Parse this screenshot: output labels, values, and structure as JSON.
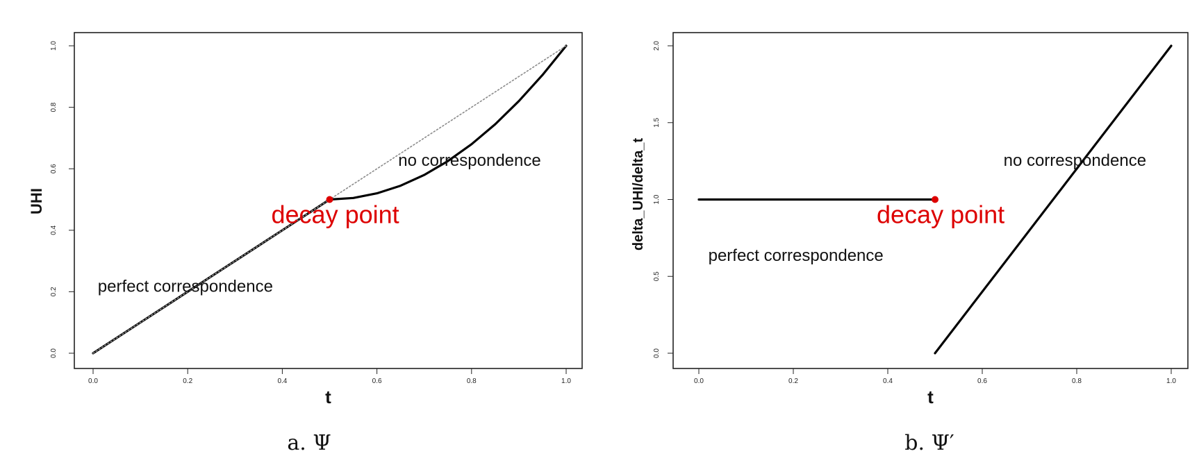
{
  "figure": {
    "captions": [
      "a. Ψ",
      "b. Ψ′"
    ]
  },
  "colors": {
    "curve": "#000000",
    "marker": "#dd0000",
    "diagonal": "#8a8a8a",
    "frame": "#222222"
  },
  "chart_data": [
    {
      "type": "line",
      "title": "",
      "caption": "a. Ψ",
      "xlabel": "t",
      "ylabel": "UHI",
      "xlim": [
        0,
        1
      ],
      "ylim": [
        0,
        1
      ],
      "xticks": [
        "0.0",
        "0.2",
        "0.4",
        "0.6",
        "0.8",
        "1.0"
      ],
      "yticks": [
        "0.0",
        "0.2",
        "0.4",
        "0.6",
        "0.8",
        "1.0"
      ],
      "grid": false,
      "series": [
        {
          "style": "solid",
          "x": [
            0.0,
            0.1,
            0.2,
            0.3,
            0.4,
            0.5
          ],
          "y": [
            0.0,
            0.1,
            0.2,
            0.3,
            0.4,
            0.5
          ]
        },
        {
          "style": "solid",
          "x": [
            0.5,
            0.55,
            0.6,
            0.65,
            0.7,
            0.75,
            0.8,
            0.85,
            0.9,
            0.95,
            1.0
          ],
          "y": [
            0.5,
            0.505,
            0.52,
            0.545,
            0.58,
            0.625,
            0.68,
            0.745,
            0.82,
            0.905,
            1.0
          ]
        },
        {
          "style": "dotted",
          "x": [
            0.0,
            1.0
          ],
          "y": [
            0.0,
            1.0
          ]
        }
      ],
      "markers": [
        {
          "x": 0.5,
          "y": 0.5,
          "label": "decay point"
        }
      ],
      "annotations": [
        {
          "text": "perfect correspondence",
          "x": 0.01,
          "y": 0.2
        },
        {
          "text": "no correspondence",
          "x": 0.645,
          "y": 0.61
        }
      ]
    },
    {
      "type": "line",
      "title": "",
      "caption": "b. Ψ′",
      "xlabel": "t",
      "ylabel": "delta_UHI/delta_t",
      "xlim": [
        0,
        1
      ],
      "ylim": [
        0,
        2
      ],
      "xticks": [
        "0.0",
        "0.2",
        "0.4",
        "0.6",
        "0.8",
        "1.0"
      ],
      "yticks": [
        "0.0",
        "0.5",
        "1.0",
        "1.5",
        "2.0"
      ],
      "grid": false,
      "series": [
        {
          "style": "solid",
          "x": [
            0.0,
            0.5
          ],
          "y": [
            1.0,
            1.0
          ]
        },
        {
          "style": "solid",
          "x": [
            0.5,
            1.0
          ],
          "y": [
            0.0,
            2.0
          ]
        }
      ],
      "markers": [
        {
          "x": 0.5,
          "y": 1.0,
          "label": "decay point"
        }
      ],
      "annotations": [
        {
          "text": "perfect correspondence",
          "x": 0.02,
          "y": 0.6
        },
        {
          "text": "no correspondence",
          "x": 0.645,
          "y": 1.22
        }
      ]
    }
  ]
}
